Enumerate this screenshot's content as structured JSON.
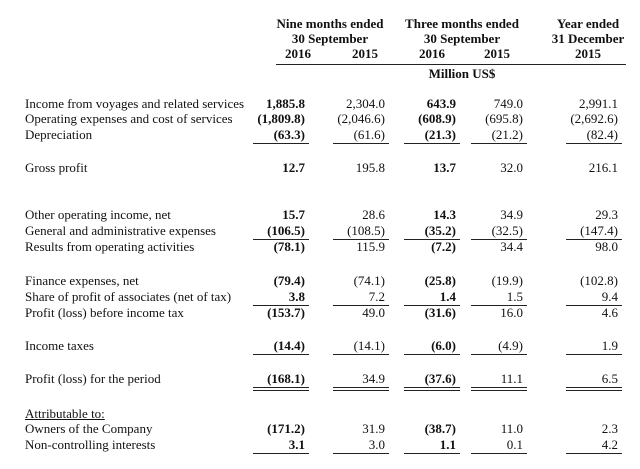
{
  "header": {
    "groups": [
      {
        "lines": [
          "Nine months ended",
          "30 September"
        ],
        "years": [
          "2016",
          "2015"
        ]
      },
      {
        "lines": [
          "Three months ended",
          "30 September"
        ],
        "years": [
          "2016",
          "2015"
        ]
      },
      {
        "lines": [
          "Year ended",
          "31 December"
        ],
        "years": [
          "2015"
        ]
      }
    ],
    "unit": "Million US$"
  },
  "table": {
    "rows": [
      [
        "Income from voyages and related services",
        "1,885.8",
        "2,304.0",
        "643.9",
        "749.0",
        "2,991.1"
      ],
      [
        "Operating expenses and cost of services",
        "(1,809.8)",
        "(2,046.6)",
        "(608.9)",
        "(695.8)",
        "(2,692.6)"
      ],
      [
        "Depreciation",
        "(63.3)",
        "(61.6)",
        "(21.3)",
        "(21.2)",
        "(82.4)"
      ],
      [
        "Gross profit",
        "12.7",
        "195.8",
        "13.7",
        "32.0",
        "216.1"
      ],
      [
        "Other operating income, net",
        "15.7",
        "28.6",
        "14.3",
        "34.9",
        "29.3"
      ],
      [
        "General and administrative expenses",
        "(106.5)",
        "(108.5)",
        "(35.2)",
        "(32.5)",
        "(147.4)"
      ],
      [
        "Results from operating activities",
        "(78.1)",
        "115.9",
        "(7.2)",
        "34.4",
        "98.0"
      ],
      [
        "Finance expenses, net",
        "(79.4)",
        "(74.1)",
        "(25.8)",
        "(19.9)",
        "(102.8)"
      ],
      [
        "Share of profit of associates (net of tax)",
        "3.8",
        "7.2",
        "1.4",
        "1.5",
        "9.4"
      ],
      [
        "Profit (loss) before income tax",
        "(153.7)",
        "49.0",
        "(31.6)",
        "16.0",
        "4.6"
      ],
      [
        "Income taxes",
        "(14.4)",
        "(14.1)",
        "(6.0)",
        "(4.9)",
        "1.9"
      ],
      [
        "Profit (loss) for the period",
        "(168.1)",
        "34.9",
        "(37.6)",
        "11.1",
        "6.5"
      ],
      [
        "Attributable to:"
      ],
      [
        "Owners of the Company",
        "(171.2)",
        "31.9",
        "(38.7)",
        "11.0",
        "2.3"
      ],
      [
        "Non-controlling interests",
        "3.1",
        "3.0",
        "1.1",
        "0.1",
        "4.2"
      ]
    ]
  }
}
